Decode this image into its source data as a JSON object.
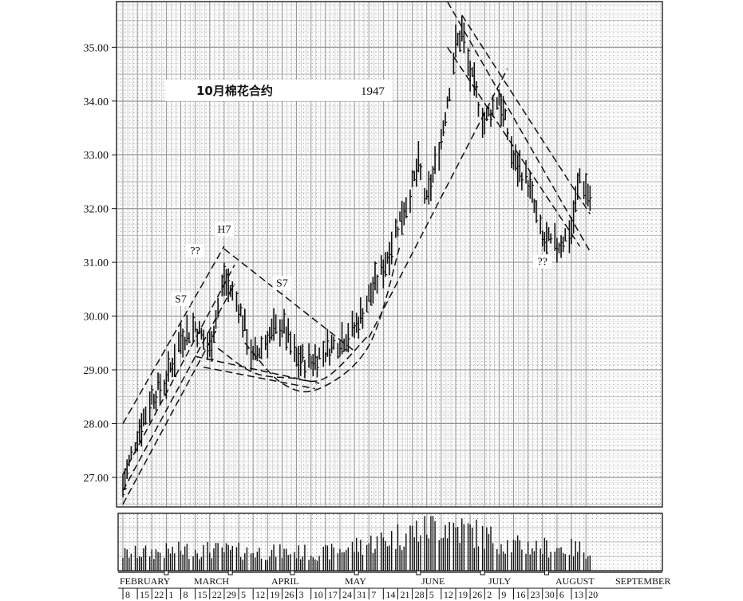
{
  "chart_data": {
    "type": "bar",
    "subtype": "ohlc-price-and-volume",
    "title": "10月棉花合约",
    "year": "1947",
    "price_axis": {
      "ylim": [
        26.45,
        35.85
      ],
      "ticks": [
        27,
        28,
        29,
        30,
        31,
        32,
        33,
        34,
        35
      ],
      "tick_labels": [
        "27.00",
        "28.00",
        "29.00",
        "30.00",
        "31.00",
        "32.00",
        "33.00",
        "34.00",
        "35.00"
      ]
    },
    "x_axis": {
      "months": [
        "FEBRUARY",
        "MARCH",
        "APRIL",
        "MAY",
        "JUNE",
        "JULY",
        "AUGUST",
        "SEPTEMBER"
      ],
      "week_labels": [
        "8",
        "15",
        "22",
        "1",
        "8",
        "15",
        "22",
        "29",
        "5",
        "12",
        "19",
        "26",
        "3",
        "10",
        "17",
        "24",
        "31",
        "7",
        "14",
        "21",
        "28",
        "5",
        "12",
        "19",
        "26",
        "2",
        "9",
        "16",
        "23",
        "30",
        "6",
        "13",
        "20"
      ]
    },
    "grid": true,
    "annotations": [
      {
        "text": "S7",
        "date": "Mar 8",
        "price": 30.25
      },
      {
        "text": "??",
        "date": "Mar 15",
        "price": 31.15
      },
      {
        "text": "H7",
        "date": "Mar 29",
        "price": 31.55
      },
      {
        "text": "S7",
        "date": "Apr 26",
        "price": 30.55
      },
      {
        "text": "??",
        "date": "Aug 30",
        "price": 30.95
      }
    ],
    "price_keypoints": [
      {
        "date": "Feb 8",
        "price": 26.85
      },
      {
        "date": "Feb 15",
        "price": 27.8
      },
      {
        "date": "Feb 22",
        "price": 28.5
      },
      {
        "date": "Mar 1",
        "price": 28.8
      },
      {
        "date": "Mar 8",
        "price": 29.6
      },
      {
        "date": "Mar 15",
        "price": 29.8
      },
      {
        "date": "Mar 22",
        "price": 29.4
      },
      {
        "date": "Mar 29",
        "price": 30.7
      },
      {
        "date": "Apr 5",
        "price": 30.2
      },
      {
        "date": "Apr 12",
        "price": 29.2
      },
      {
        "date": "Apr 19",
        "price": 29.6
      },
      {
        "date": "Apr 26",
        "price": 29.85
      },
      {
        "date": "May 3",
        "price": 29.2
      },
      {
        "date": "May 10",
        "price": 29.15
      },
      {
        "date": "May 17",
        "price": 29.35
      },
      {
        "date": "May 24",
        "price": 29.55
      },
      {
        "date": "May 31",
        "price": 29.75
      },
      {
        "date": "Jun 7",
        "price": 30.35
      },
      {
        "date": "Jun 14",
        "price": 30.9
      },
      {
        "date": "Jun 21",
        "price": 31.7
      },
      {
        "date": "Jun 28",
        "price": 32.4
      },
      {
        "date": "Jul 1",
        "price": 32.8
      },
      {
        "date": "Jul 5",
        "price": 32.1
      },
      {
        "date": "Jul 12",
        "price": 33.3
      },
      {
        "date": "Jul 19",
        "price": 35.0
      },
      {
        "date": "Jul 22",
        "price": 35.3
      },
      {
        "date": "Jul 26",
        "price": 34.5
      },
      {
        "date": "Aug 2",
        "price": 33.6
      },
      {
        "date": "Aug 9",
        "price": 34.1
      },
      {
        "date": "Aug 16",
        "price": 32.9
      },
      {
        "date": "Aug 23",
        "price": 32.5
      },
      {
        "date": "Aug 30",
        "price": 31.4
      },
      {
        "date": "Sep 6",
        "price": 31.3
      },
      {
        "date": "Sep 13",
        "price": 31.6
      },
      {
        "date": "Sep 17",
        "price": 32.6
      },
      {
        "date": "Sep 22",
        "price": 32.2
      }
    ],
    "volume_keypoints": [
      {
        "date": "Feb 8",
        "level": 0.3
      },
      {
        "date": "Mar 15",
        "level": 0.38
      },
      {
        "date": "Apr 12",
        "level": 0.34
      },
      {
        "date": "May 17",
        "level": 0.32
      },
      {
        "date": "Jun 14",
        "level": 0.55
      },
      {
        "date": "Jul 12",
        "level": 0.85
      },
      {
        "date": "Jul 26",
        "level": 0.7
      },
      {
        "date": "Aug 16",
        "level": 0.45
      },
      {
        "date": "Sep 22",
        "level": 0.38
      }
    ],
    "trendlines": [
      {
        "from": {
          "date": "Feb 8",
          "price": 28.0
        },
        "to": {
          "date": "Mar 29",
          "price": 31.3
        }
      },
      {
        "from": {
          "date": "Feb 8",
          "price": 27.05
        },
        "to": {
          "date": "Apr 3",
          "price": 30.95
        }
      },
      {
        "from": {
          "date": "Feb 8",
          "price": 26.75
        },
        "to": {
          "date": "Apr 3",
          "price": 30.6
        }
      },
      {
        "from": {
          "date": "Feb 8",
          "price": 26.5
        },
        "to": {
          "date": "Mar 26",
          "price": 29.8
        }
      },
      {
        "from": {
          "date": "Mar 29",
          "price": 31.25
        },
        "to": {
          "date": "May 31",
          "price": 29.35
        }
      },
      {
        "from": {
          "date": "Mar 15",
          "price": 29.25
        },
        "to": {
          "date": "May 14",
          "price": 28.75
        }
      },
      {
        "from": {
          "date": "Mar 19",
          "price": 29.05
        },
        "to": {
          "date": "May 12",
          "price": 28.65
        }
      },
      {
        "from": {
          "date": "Jun 7",
          "price": 29.6
        },
        "to": {
          "date": "Aug 13",
          "price": 34.6
        }
      },
      {
        "from": {
          "date": "Jul 15",
          "price": 35.85
        },
        "to": {
          "date": "Sep 22",
          "price": 31.2
        }
      },
      {
        "from": {
          "date": "Jul 22",
          "price": 35.6
        },
        "to": {
          "date": "Sep 22",
          "price": 31.9
        }
      },
      {
        "from": {
          "date": "Jul 15",
          "price": 35.0
        },
        "to": {
          "date": "Sep 17",
          "price": 31.3
        }
      }
    ],
    "curves": [
      {
        "points": [
          {
            "date": "Apr 8",
            "price": 29.5
          },
          {
            "date": "Apr 26",
            "price": 28.75
          },
          {
            "date": "May 14",
            "price": 28.65
          },
          {
            "date": "Jun 7",
            "price": 29.45
          },
          {
            "date": "Jun 22",
            "price": 31.3
          }
        ]
      },
      {
        "points": [
          {
            "date": "Mar 26",
            "price": 29.4
          },
          {
            "date": "Apr 12",
            "price": 28.95
          },
          {
            "date": "Apr 30",
            "price": 28.85
          },
          {
            "date": "May 17",
            "price": 28.85
          },
          {
            "date": "Jun 7",
            "price": 29.65
          }
        ]
      }
    ]
  }
}
